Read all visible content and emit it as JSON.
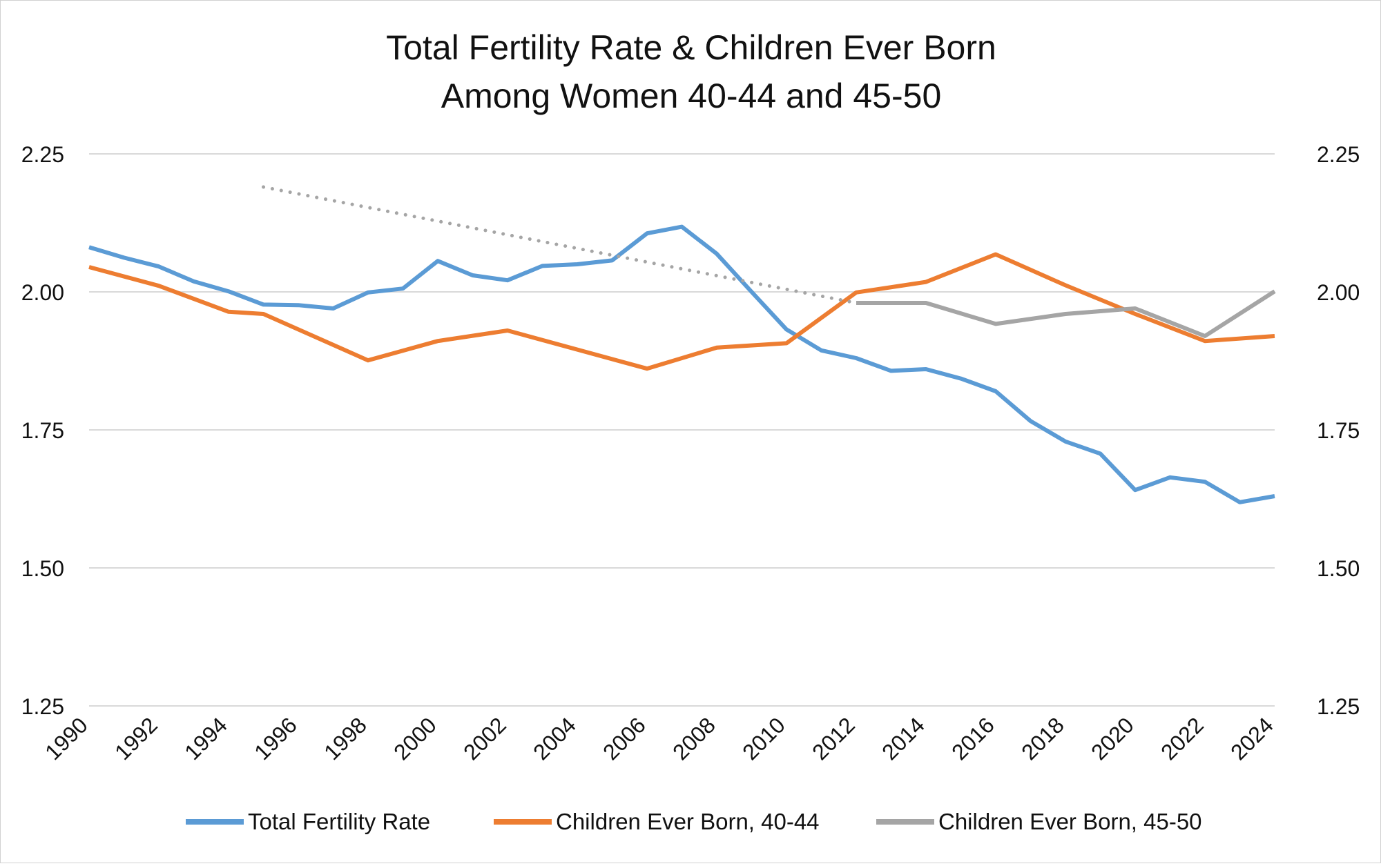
{
  "chart_data": {
    "type": "line",
    "title": [
      "Total Fertility Rate & Children Ever Born",
      "Among Women 40-44 and 45-50"
    ],
    "xlabel": "",
    "ylabel": "",
    "xlim": [
      1990,
      2024
    ],
    "ylim": [
      1.25,
      2.25
    ],
    "y_ticks": [
      "1.25",
      "1.50",
      "1.75",
      "2.00",
      "2.25"
    ],
    "y2_ticks": [
      "1.25",
      "1.50",
      "1.75",
      "2.00",
      "2.25"
    ],
    "x_ticks": [
      "1990",
      "1992",
      "1994",
      "1996",
      "1998",
      "2000",
      "2002",
      "2004",
      "2006",
      "2008",
      "2010",
      "2012",
      "2014",
      "2016",
      "2018",
      "2020",
      "2022",
      "2024"
    ],
    "grid": true,
    "legend_position": "bottom",
    "series": [
      {
        "name": "Total Fertility Rate",
        "color": "#5b9bd5",
        "style": "solid",
        "x": [
          1990,
          1991,
          1992,
          1993,
          1994,
          1995,
          1996,
          1997,
          1998,
          1999,
          2000,
          2001,
          2002,
          2003,
          2004,
          2005,
          2006,
          2007,
          2008,
          2009,
          2010,
          2011,
          2012,
          2013,
          2014,
          2015,
          2016,
          2017,
          2018,
          2019,
          2020,
          2021,
          2022,
          2023,
          2024
        ],
        "y": [
          2.081,
          2.062,
          2.046,
          2.019,
          2.001,
          1.977,
          1.976,
          1.97,
          1.999,
          2.006,
          2.056,
          2.03,
          2.021,
          2.047,
          2.05,
          2.057,
          2.106,
          2.118,
          2.069,
          2.0,
          1.932,
          1.894,
          1.88,
          1.857,
          1.86,
          1.843,
          1.82,
          1.766,
          1.729,
          1.707,
          1.641,
          1.664,
          1.656,
          1.619,
          1.63
        ]
      },
      {
        "name": "Children Ever Born, 40-44",
        "color": "#ed7d31",
        "style": "solid",
        "x": [
          1990,
          1992,
          1994,
          1995,
          1998,
          2000,
          2002,
          2006,
          2008,
          2010,
          2012,
          2014,
          2016,
          2018,
          2020,
          2022,
          2024
        ],
        "y": [
          2.045,
          2.011,
          1.964,
          1.96,
          1.876,
          1.911,
          1.93,
          1.861,
          1.899,
          1.907,
          1.999,
          2.018,
          2.068,
          2.012,
          1.96,
          1.911,
          1.92
        ]
      },
      {
        "name": "Children Ever Born, 45-50",
        "color": "#a5a5a5",
        "style": "solid",
        "x": [
          2012,
          2014,
          2016,
          2018,
          2020,
          2022,
          2024
        ],
        "y": [
          1.98,
          1.98,
          1.942,
          1.96,
          1.97,
          1.92,
          2.001
        ]
      },
      {
        "name": "",
        "color": "#a5a5a5",
        "style": "dotted",
        "x": [
          1995,
          2012
        ],
        "y": [
          2.19,
          1.98
        ]
      }
    ]
  }
}
